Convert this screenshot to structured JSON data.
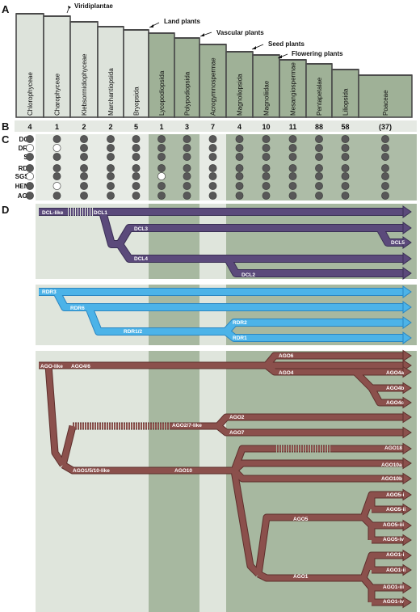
{
  "panels": {
    "a": "A",
    "b": "B",
    "c": "C",
    "d": "D"
  },
  "lineages": [
    "Viridiplantae",
    "Land plants",
    "Vascular plants",
    "Seed plants",
    "Flowering plants"
  ],
  "taxa": [
    {
      "name": "Chlorophyceae",
      "count": "4"
    },
    {
      "name": "Charophyceae",
      "count": "1"
    },
    {
      "name": "Klebsormidiophyceae",
      "count": "2"
    },
    {
      "name": "Marchantiopsida",
      "count": "2"
    },
    {
      "name": "Bryopsida",
      "count": "5"
    },
    {
      "name": "Lycopodiopsida",
      "count": "1"
    },
    {
      "name": "Polypodiopsida",
      "count": "3"
    },
    {
      "name": "Acrogymnospermae",
      "count": "7"
    },
    {
      "name": "Magnoliopsida",
      "count": "4"
    },
    {
      "name": "Magnoliidae",
      "count": "10"
    },
    {
      "name": "Mesangiospermae",
      "count": "11"
    },
    {
      "name": "Pentapetalae",
      "count": "88"
    },
    {
      "name": "Liliopsida",
      "count": "58"
    },
    {
      "name": "Poaceae",
      "count": "(37)"
    }
  ],
  "gene_rows": [
    {
      "label": "DCL",
      "open": []
    },
    {
      "label": "DRB",
      "open": [
        0,
        1
      ]
    },
    {
      "label": "SE",
      "open": []
    },
    {
      "label": "RDR",
      "open": []
    },
    {
      "label": "SGS3",
      "open": [
        0,
        5
      ]
    },
    {
      "label": "HEN1",
      "open": [
        1
      ]
    },
    {
      "label": "AGO",
      "open": []
    }
  ],
  "colors": {
    "panel_bg": "#dde3db",
    "band_light": "#cfd8cc",
    "band_dark": "#a9b9a3",
    "box_light": "#dde3db",
    "box_dark": "#9fb197",
    "box_stroke": "#4a4a4a",
    "dot": "#585858",
    "dot_open": "#ffffff",
    "dcl": "#5b4a7b",
    "dcl_edge": "#3a2f55",
    "rdr": "#4cb3e8",
    "rdr_edge": "#2a86c2",
    "ago": "#8b504c",
    "ago_edge": "#5e2f2c"
  },
  "dcl_labels": [
    "DCL-like",
    "DCL1",
    "DCL3",
    "DCL4",
    "DCL5",
    "DCL2"
  ],
  "rdr_labels": [
    "RDR3",
    "RDR6",
    "RDR1/2",
    "RDR2",
    "RDR1"
  ],
  "ago_labels": [
    "AGO-like",
    "AGO4/6",
    "AGO6",
    "AGO4",
    "AGO4a",
    "AGO4b",
    "AGO4c",
    "AGO2/7-like",
    "AGO2",
    "AGO7",
    "AGO1/5/10-like",
    "AGO10",
    "AGO18",
    "AGO10a",
    "AGO10b",
    "AGO5",
    "AGO5-i",
    "AGO5-ii",
    "AGO5-iii",
    "AGO5-iv",
    "AGO1",
    "AGO1-i",
    "AGO1-ii",
    "AGO1-iii",
    "AGO1-iv"
  ]
}
